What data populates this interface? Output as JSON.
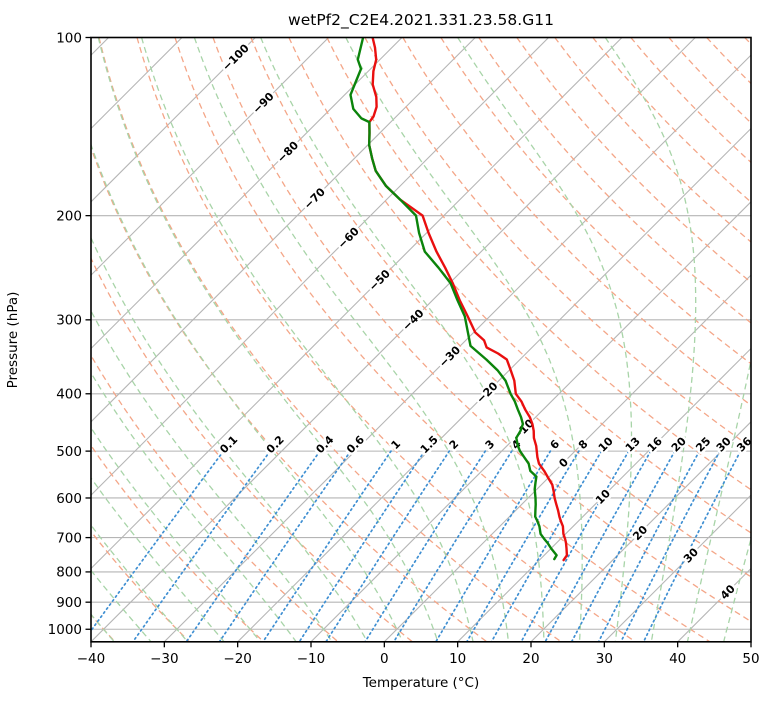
{
  "chart_data": {
    "type": "line",
    "subtype": "skew_t_log_p_sounding",
    "title": "wetPf2_C2E4.2021.331.23.58.G11",
    "xlabel": "Temperature (°C)",
    "ylabel": "Pressure (hPa)",
    "xlim": [
      -40,
      50
    ],
    "pressure_lim": [
      1050,
      100
    ],
    "skew_angle_deg": 45,
    "grid": true,
    "x_ticks": {
      "values": [
        -40,
        -30,
        -20,
        -10,
        0,
        10,
        20,
        30,
        40,
        50
      ],
      "labels": [
        "−40",
        "−30",
        "−20",
        "−10",
        "0",
        "10",
        "20",
        "30",
        "40",
        "50"
      ]
    },
    "y_ticks": {
      "values": [
        100,
        200,
        300,
        400,
        500,
        600,
        700,
        800,
        900,
        1000
      ],
      "labels": [
        "100",
        "200",
        "300",
        "400",
        "500",
        "600",
        "700",
        "800",
        "900",
        "1000"
      ]
    },
    "style": {
      "frame": "#000000",
      "grid_gray": "#b5b5b5",
      "isotherm": "#b5b5b5",
      "dry_adiabat": "#f4a688",
      "moist_adiabat": "#a8d4a8",
      "mixing_line": "#3f8fd2",
      "temperature": "#e90f0f",
      "dewpoint": "#0b840b",
      "isotherm_label_neg": "#1f77b4",
      "isotherm_label_zero": "#7f7f7f",
      "isotherm_label_pos": "#d62728",
      "mixing_label": "#2f81c4"
    },
    "isotherms": {
      "start": -120,
      "end": 50,
      "step": 10,
      "labels": [
        {
          "text": "−100",
          "t": -100,
          "p": 108,
          "color": "#1f77b4"
        },
        {
          "text": "−90",
          "t": -90,
          "p": 129,
          "color": "#1f77b4"
        },
        {
          "text": "−80",
          "t": -80,
          "p": 156,
          "color": "#1f77b4"
        },
        {
          "text": "−70",
          "t": -70,
          "p": 187,
          "color": "#1f77b4"
        },
        {
          "text": "−60",
          "t": -60,
          "p": 218,
          "color": "#1f77b4"
        },
        {
          "text": "−50",
          "t": -50,
          "p": 257,
          "color": "#1f77b4"
        },
        {
          "text": "−40",
          "t": -40,
          "p": 300,
          "color": "#1f77b4"
        },
        {
          "text": "−30",
          "t": -30,
          "p": 346,
          "color": "#1f77b4"
        },
        {
          "text": "−20",
          "t": -20,
          "p": 398,
          "color": "#1f77b4"
        },
        {
          "text": "−10",
          "t": -10,
          "p": 460,
          "color": "#1f77b4"
        },
        {
          "text": "0",
          "t": 0,
          "p": 523,
          "color": "#7f7f7f"
        },
        {
          "text": "10",
          "t": 10,
          "p": 597,
          "color": "#d62728"
        },
        {
          "text": "20",
          "t": 20,
          "p": 687,
          "color": "#d62728"
        },
        {
          "text": "30",
          "t": 30,
          "p": 750,
          "color": "#d62728"
        },
        {
          "text": "40",
          "t": 40,
          "p": 865,
          "color": "#d62728"
        }
      ]
    },
    "dry_adiabats": {
      "start": -40,
      "end": 200,
      "step": 10
    },
    "moist_adiabats": {
      "start": -40,
      "end": 50,
      "step": 5
    },
    "mixing_lines": {
      "values": [
        0.1,
        0.2,
        0.4,
        0.6,
        1,
        1.5,
        2,
        3,
        4,
        6,
        8,
        10,
        13,
        16,
        20,
        25,
        30,
        36
      ],
      "labels": [
        "0.1",
        "0.2",
        "0.4",
        "0.6",
        "1",
        "1.5",
        "2",
        "3",
        "4",
        "6",
        "8",
        "10",
        "13",
        "16",
        "20",
        "25",
        "30",
        "36"
      ],
      "p_bottom": 1050,
      "p_top": 500,
      "label_p": 487
    },
    "series": [
      {
        "name": "temperature",
        "color": "#e90f0f",
        "points": [
          [
            100,
            -84
          ],
          [
            104,
            -82.3
          ],
          [
            109,
            -80.5
          ],
          [
            114,
            -79.3
          ],
          [
            120,
            -77.6
          ],
          [
            126,
            -75.4
          ],
          [
            131,
            -74
          ],
          [
            136,
            -73.1
          ],
          [
            139,
            -72.9
          ],
          [
            145,
            -71.4
          ],
          [
            152,
            -69.8
          ],
          [
            160,
            -67.6
          ],
          [
            168,
            -65.4
          ],
          [
            178,
            -62
          ],
          [
            188,
            -58.1
          ],
          [
            200,
            -52.9
          ],
          [
            214,
            -49.7
          ],
          [
            230,
            -46.1
          ],
          [
            245,
            -42.7
          ],
          [
            260,
            -39.6
          ],
          [
            278,
            -36.3
          ],
          [
            296,
            -33
          ],
          [
            315,
            -29.8
          ],
          [
            325,
            -27.5
          ],
          [
            334,
            -26.2
          ],
          [
            342,
            -23.8
          ],
          [
            350,
            -21.8
          ],
          [
            365,
            -19.8
          ],
          [
            380,
            -17.9
          ],
          [
            400,
            -15.9
          ],
          [
            412,
            -14.1
          ],
          [
            425,
            -12.5
          ],
          [
            438,
            -10.8
          ],
          [
            450,
            -9.5
          ],
          [
            462,
            -8.4
          ],
          [
            475,
            -7.4
          ],
          [
            490,
            -6
          ],
          [
            512,
            -4.3
          ],
          [
            525,
            -3.2
          ],
          [
            540,
            -1.5
          ],
          [
            555,
            0
          ],
          [
            570,
            1.5
          ],
          [
            585,
            2.6
          ],
          [
            600,
            3.6
          ],
          [
            615,
            4.7
          ],
          [
            630,
            5.8
          ],
          [
            645,
            6.8
          ],
          [
            655,
            7.5
          ],
          [
            670,
            8.6
          ],
          [
            690,
            9.7
          ],
          [
            705,
            10.7
          ],
          [
            715,
            11.3
          ],
          [
            730,
            12.1
          ],
          [
            750,
            13.1
          ],
          [
            764,
            13.3
          ]
        ]
      },
      {
        "name": "dewpoint",
        "color": "#0b840b",
        "points": [
          [
            100,
            -85.3
          ],
          [
            105,
            -84
          ],
          [
            109,
            -83
          ],
          [
            113,
            -81.3
          ],
          [
            118,
            -80.4
          ],
          [
            125,
            -79.2
          ],
          [
            132,
            -76.9
          ],
          [
            137,
            -74.5
          ],
          [
            139,
            -72.9
          ],
          [
            145,
            -71.4
          ],
          [
            152,
            -69.8
          ],
          [
            160,
            -67.6
          ],
          [
            168,
            -65.4
          ],
          [
            178,
            -62
          ],
          [
            188,
            -58.1
          ],
          [
            200,
            -53.8
          ],
          [
            214,
            -51
          ],
          [
            230,
            -47.7
          ],
          [
            245,
            -43.6
          ],
          [
            260,
            -39.9
          ],
          [
            278,
            -36.6
          ],
          [
            296,
            -33.4
          ],
          [
            315,
            -30.8
          ],
          [
            332,
            -28.6
          ],
          [
            350,
            -24.6
          ],
          [
            365,
            -21.6
          ],
          [
            380,
            -19.1
          ],
          [
            400,
            -16.6
          ],
          [
            412,
            -15
          ],
          [
            425,
            -13.5
          ],
          [
            438,
            -12
          ],
          [
            450,
            -10.8
          ],
          [
            462,
            -10.2
          ],
          [
            475,
            -9.8
          ],
          [
            490,
            -8.5
          ],
          [
            500,
            -7.5
          ],
          [
            512,
            -6.1
          ],
          [
            525,
            -4.6
          ],
          [
            540,
            -3.4
          ],
          [
            552,
            -1.8
          ],
          [
            565,
            -1.1
          ],
          [
            580,
            -0.3
          ],
          [
            600,
            1
          ],
          [
            615,
            1.9
          ],
          [
            630,
            2.7
          ],
          [
            645,
            3.5
          ],
          [
            655,
            4.3
          ],
          [
            670,
            5.4
          ],
          [
            690,
            6.6
          ],
          [
            705,
            7.9
          ],
          [
            715,
            8.8
          ],
          [
            730,
            10
          ],
          [
            750,
            11.7
          ],
          [
            761,
            11.9
          ]
        ]
      }
    ]
  }
}
